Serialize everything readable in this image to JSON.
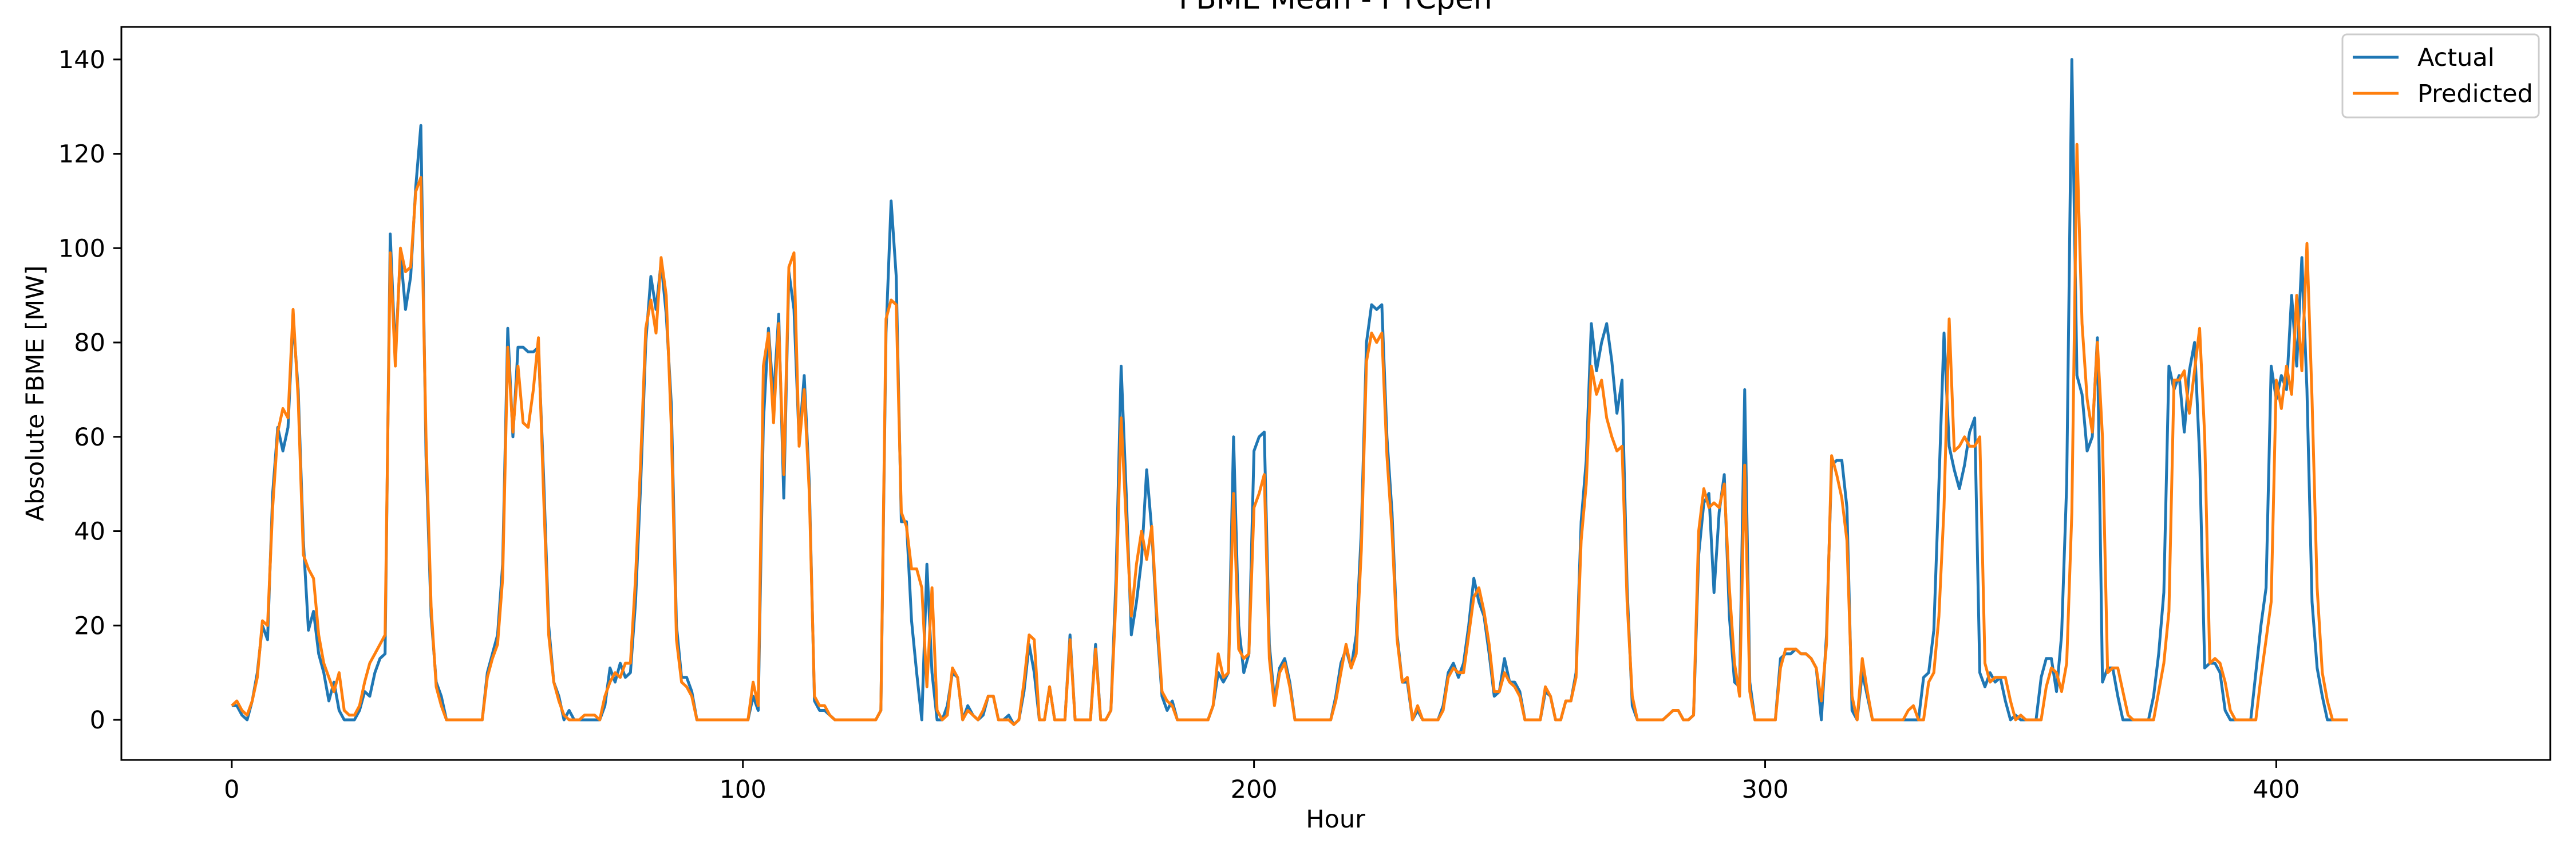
{
  "chart_data": {
    "type": "line",
    "title": "FBME Mean - PTCpen",
    "xlabel": "Hour",
    "ylabel": "Absolute FBME [MW]",
    "xlim": [
      -21.6,
      453.6
    ],
    "ylim": [
      -8.5,
      146.9
    ],
    "xticks": [
      0,
      100,
      200,
      300,
      400
    ],
    "yticks": [
      0,
      20,
      40,
      60,
      80,
      100,
      120,
      140
    ],
    "legend_position": "top-right",
    "grid": false,
    "colors": {
      "Actual": "#1f77b4",
      "Predicted": "#ff7f0e"
    },
    "series": [
      {
        "name": "Actual",
        "values": [
          3,
          3,
          1,
          0,
          4,
          10,
          20,
          17,
          48,
          62,
          57,
          62,
          85,
          70,
          38,
          19,
          23,
          14,
          10,
          4,
          8,
          2,
          0,
          0,
          0,
          2,
          6,
          5,
          10,
          13,
          14,
          103,
          77,
          99,
          87,
          94,
          113,
          126,
          56,
          22,
          8,
          5,
          0,
          0,
          0,
          0,
          0,
          0,
          0,
          0,
          10,
          14,
          18,
          33,
          83,
          60,
          79,
          79,
          78,
          78,
          79,
          52,
          20,
          8,
          5,
          0,
          2,
          0,
          0,
          0,
          0,
          0,
          0,
          3,
          11,
          8,
          12,
          9,
          10,
          25,
          50,
          80,
          94,
          87,
          97,
          86,
          67,
          20,
          9,
          9,
          6,
          0,
          0,
          0,
          0,
          0,
          0,
          0,
          0,
          0,
          0,
          0,
          5,
          2,
          63,
          83,
          68,
          86,
          47,
          95,
          87,
          59,
          73,
          50,
          4,
          2,
          2,
          1,
          0,
          0,
          0,
          0,
          0,
          0,
          0,
          0,
          0,
          2,
          82,
          110,
          94,
          42,
          42,
          21,
          10,
          0,
          33,
          10,
          0,
          0,
          3,
          10,
          9,
          0,
          3,
          1,
          0,
          1,
          5,
          5,
          0,
          0,
          1,
          -1,
          0,
          6,
          16,
          10,
          0,
          0,
          7,
          0,
          0,
          0,
          18,
          0,
          0,
          0,
          0,
          16,
          0,
          0,
          2,
          30,
          75,
          48,
          18,
          25,
          34,
          53,
          40,
          20,
          5,
          2,
          4,
          0,
          0,
          0,
          0,
          0,
          0,
          0,
          3,
          10,
          8,
          10,
          60,
          20,
          10,
          14,
          57,
          60,
          61,
          16,
          4,
          11,
          13,
          8,
          0,
          0,
          0,
          0,
          0,
          0,
          0,
          0,
          5,
          12,
          15,
          11,
          18,
          40,
          80,
          88,
          87,
          88,
          60,
          44,
          18,
          8,
          8,
          0,
          2,
          0,
          0,
          0,
          0,
          3,
          10,
          12,
          9,
          12,
          20,
          30,
          25,
          22,
          14,
          5,
          6,
          13,
          8,
          8,
          6,
          0,
          0,
          0,
          0,
          6,
          5,
          0,
          0,
          4,
          4,
          10,
          42,
          55,
          84,
          74,
          80,
          84,
          76,
          65,
          72,
          28,
          3,
          0,
          0,
          0,
          0,
          0,
          0,
          1,
          2,
          2,
          0,
          0,
          1,
          35,
          46,
          48,
          27,
          44,
          52,
          22,
          8,
          7,
          70,
          8,
          0,
          0,
          0,
          0,
          0,
          13,
          14,
          14,
          15,
          14,
          14,
          13,
          11,
          0,
          18,
          54,
          55,
          55,
          45,
          2,
          0,
          10,
          5,
          0,
          0,
          0,
          0,
          0,
          0,
          0,
          0,
          0,
          0,
          9,
          10,
          19,
          50,
          82,
          58,
          53,
          49,
          54,
          61,
          64,
          10,
          7,
          10,
          8,
          9,
          4,
          0,
          1,
          0,
          0,
          0,
          0,
          9,
          13,
          13,
          6,
          18,
          50,
          140,
          73,
          69,
          57,
          60,
          81,
          8,
          11,
          11,
          5,
          0,
          0,
          0,
          0,
          0,
          0,
          5,
          14,
          27,
          75,
          70,
          73,
          61,
          74,
          80,
          56,
          11,
          12,
          12,
          10,
          2,
          0,
          0,
          0,
          0,
          0,
          10,
          20,
          28,
          75,
          68,
          73,
          70,
          90,
          75,
          98,
          70,
          25,
          11,
          5,
          0,
          0,
          0,
          0
        ]
      },
      {
        "name": "Predicted",
        "values": [
          3,
          4,
          2,
          1,
          4,
          9,
          21,
          20,
          45,
          61,
          66,
          64,
          87,
          68,
          35,
          32,
          30,
          18,
          12,
          9,
          6,
          10,
          2,
          1,
          1,
          3,
          8,
          12,
          14,
          16,
          18,
          99,
          75,
          100,
          95,
          96,
          112,
          115,
          60,
          24,
          7,
          3,
          0,
          0,
          0,
          0,
          0,
          0,
          0,
          0,
          9,
          13,
          16,
          30,
          79,
          61,
          75,
          63,
          62,
          70,
          81,
          48,
          18,
          8,
          4,
          1,
          0,
          0,
          0,
          1,
          1,
          1,
          0,
          5,
          8,
          10,
          9,
          12,
          12,
          30,
          55,
          83,
          89,
          82,
          98,
          90,
          62,
          17,
          8,
          7,
          5,
          0,
          0,
          0,
          0,
          0,
          0,
          0,
          0,
          0,
          0,
          0,
          8,
          3,
          75,
          82,
          63,
          84,
          52,
          96,
          99,
          58,
          70,
          48,
          5,
          3,
          3,
          1,
          0,
          0,
          0,
          0,
          0,
          0,
          0,
          0,
          0,
          2,
          85,
          89,
          88,
          44,
          41,
          32,
          32,
          28,
          7,
          28,
          2,
          0,
          1,
          11,
          9,
          0,
          2,
          1,
          0,
          2,
          5,
          5,
          0,
          0,
          0,
          -1,
          0,
          8,
          18,
          17,
          0,
          0,
          7,
          0,
          0,
          0,
          17,
          0,
          0,
          0,
          0,
          15,
          0,
          0,
          2,
          26,
          64,
          42,
          22,
          33,
          40,
          34,
          41,
          22,
          6,
          4,
          3,
          0,
          0,
          0,
          0,
          0,
          0,
          0,
          3,
          14,
          9,
          10,
          48,
          15,
          13,
          14,
          45,
          48,
          52,
          13,
          3,
          10,
          12,
          7,
          0,
          0,
          0,
          0,
          0,
          0,
          0,
          0,
          4,
          10,
          16,
          11,
          14,
          36,
          76,
          82,
          80,
          82,
          56,
          40,
          17,
          8,
          9,
          0,
          3,
          0,
          0,
          0,
          0,
          2,
          9,
          11,
          10,
          10,
          18,
          26,
          28,
          23,
          16,
          6,
          6,
          10,
          8,
          7,
          5,
          0,
          0,
          0,
          0,
          7,
          5,
          0,
          0,
          4,
          4,
          9,
          38,
          50,
          75,
          69,
          72,
          64,
          60,
          57,
          58,
          25,
          5,
          0,
          0,
          0,
          0,
          0,
          0,
          1,
          2,
          2,
          0,
          0,
          1,
          40,
          49,
          45,
          46,
          45,
          50,
          28,
          12,
          5,
          54,
          6,
          0,
          0,
          0,
          0,
          0,
          11,
          15,
          15,
          15,
          14,
          14,
          13,
          11,
          4,
          16,
          56,
          52,
          47,
          38,
          5,
          0,
          13,
          6,
          0,
          0,
          0,
          0,
          0,
          0,
          0,
          2,
          3,
          0,
          0,
          8,
          10,
          22,
          45,
          85,
          57,
          58,
          60,
          58,
          58,
          60,
          12,
          8,
          9,
          9,
          9,
          4,
          0,
          1,
          0,
          0,
          0,
          0,
          7,
          11,
          10,
          6,
          12,
          44,
          122,
          84,
          68,
          61,
          80,
          60,
          10,
          11,
          11,
          6,
          1,
          0,
          0,
          0,
          0,
          0,
          6,
          12,
          23,
          72,
          72,
          74,
          65,
          74,
          83,
          60,
          12,
          13,
          12,
          8,
          2,
          0,
          0,
          0,
          0,
          0,
          9,
          17,
          25,
          72,
          66,
          75,
          69,
          90,
          74,
          101,
          68,
          28,
          10,
          4,
          0,
          0,
          0,
          0
        ]
      }
    ]
  }
}
